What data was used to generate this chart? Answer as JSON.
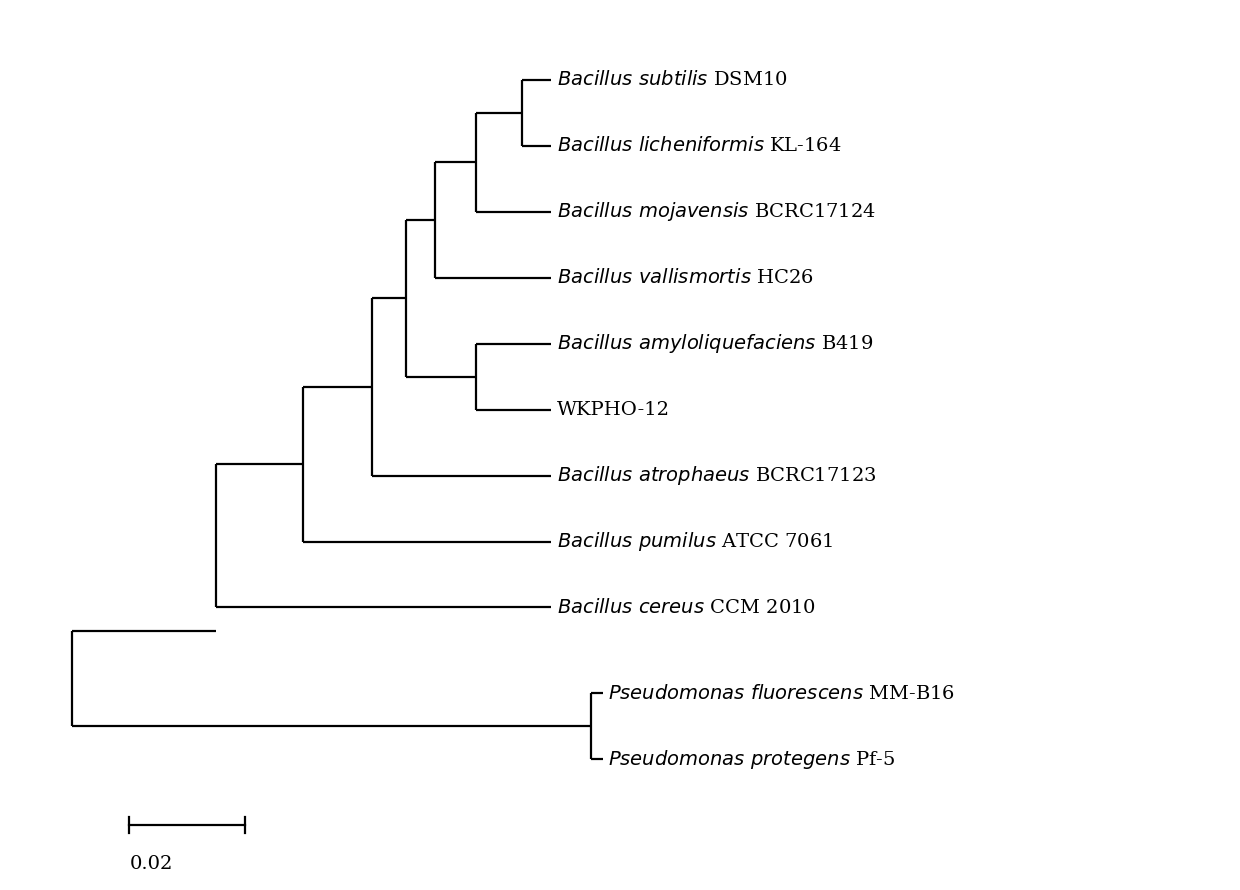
{
  "taxa_y": {
    "subtilis": 10.0,
    "lichen": 9.0,
    "mojavensis": 8.0,
    "vallis": 7.0,
    "amylo": 6.0,
    "wkpho": 5.0,
    "atrophaeus": 4.0,
    "pumilus": 3.0,
    "cereus": 2.0,
    "pseudo_f": 0.7,
    "pseudo_p": -0.3
  },
  "background_color": "#ffffff",
  "line_color": "#000000",
  "font_size": 14,
  "lw": 1.6,
  "scale_value": 0.02,
  "xlim": [
    -0.01,
    0.2
  ],
  "ylim": [
    -2.0,
    11.0
  ]
}
